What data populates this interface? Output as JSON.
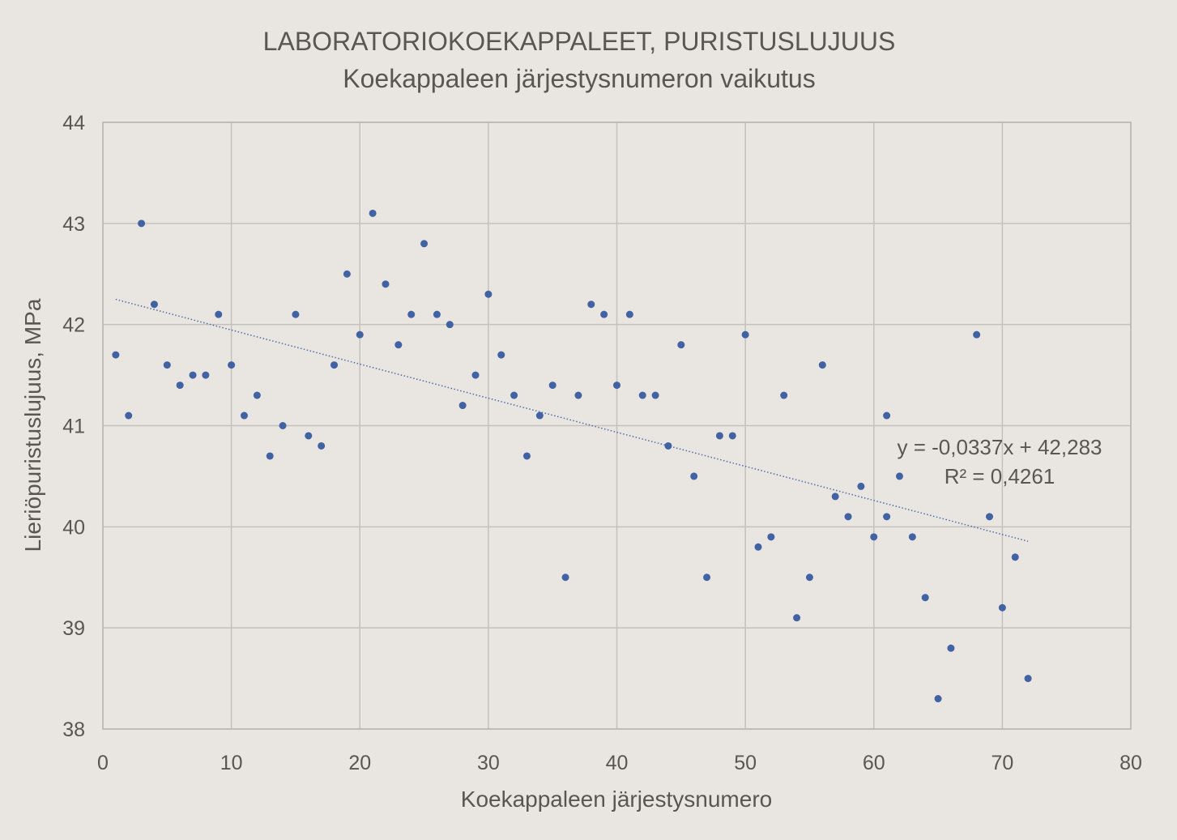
{
  "chart_data": {
    "type": "scatter",
    "title": "LABORATORIOKOEKAPPALEET, PURISTUSLUJUUS",
    "subtitle": "Koekappaleen järjestysnumeron vaikutus",
    "xlabel": "Koekappaleen järjestysnumero",
    "ylabel": "Lieriöpuristuslujuus, MPa",
    "xlim": [
      0,
      80
    ],
    "ylim": [
      38,
      44
    ],
    "xticks": [
      "0",
      "10",
      "20",
      "30",
      "40",
      "50",
      "60",
      "70",
      "80"
    ],
    "yticks": [
      "38",
      "39",
      "40",
      "41",
      "42",
      "43",
      "44"
    ],
    "grid": true,
    "marker_color": "#4263a3",
    "trend_color": "#4a6ba8",
    "points": [
      [
        1,
        41.7
      ],
      [
        2,
        41.1
      ],
      [
        3,
        43.0
      ],
      [
        4,
        42.2
      ],
      [
        5,
        41.6
      ],
      [
        6,
        41.4
      ],
      [
        7,
        41.5
      ],
      [
        8,
        41.5
      ],
      [
        9,
        42.1
      ],
      [
        10,
        41.6
      ],
      [
        11,
        41.1
      ],
      [
        12,
        41.3
      ],
      [
        13,
        40.7
      ],
      [
        14,
        41.0
      ],
      [
        15,
        42.1
      ],
      [
        16,
        40.9
      ],
      [
        17,
        40.8
      ],
      [
        18,
        41.6
      ],
      [
        19,
        42.5
      ],
      [
        20,
        41.9
      ],
      [
        21,
        43.1
      ],
      [
        22,
        42.4
      ],
      [
        23,
        41.8
      ],
      [
        24,
        42.1
      ],
      [
        25,
        42.8
      ],
      [
        26,
        42.1
      ],
      [
        27,
        42.0
      ],
      [
        28,
        41.2
      ],
      [
        29,
        41.5
      ],
      [
        30,
        42.3
      ],
      [
        31,
        41.7
      ],
      [
        32,
        41.3
      ],
      [
        33,
        40.7
      ],
      [
        34,
        41.1
      ],
      [
        35,
        41.4
      ],
      [
        36,
        39.5
      ],
      [
        37,
        41.3
      ],
      [
        38,
        42.2
      ],
      [
        39,
        42.1
      ],
      [
        40,
        41.4
      ],
      [
        41,
        42.1
      ],
      [
        42,
        41.3
      ],
      [
        43,
        41.3
      ],
      [
        44,
        40.8
      ],
      [
        45,
        41.8
      ],
      [
        46,
        40.5
      ],
      [
        47,
        39.5
      ],
      [
        48,
        40.9
      ],
      [
        49,
        40.9
      ],
      [
        50,
        41.9
      ],
      [
        51,
        39.8
      ],
      [
        52,
        39.9
      ],
      [
        53,
        41.3
      ],
      [
        54,
        39.1
      ],
      [
        55,
        39.5
      ],
      [
        56,
        41.6
      ],
      [
        57,
        40.3
      ],
      [
        58,
        40.1
      ],
      [
        59,
        40.4
      ],
      [
        60,
        39.9
      ],
      [
        61,
        41.1
      ],
      [
        61,
        40.1
      ],
      [
        62,
        40.5
      ],
      [
        63,
        39.9
      ],
      [
        64,
        39.3
      ],
      [
        65,
        38.3
      ],
      [
        66,
        38.8
      ],
      [
        68,
        41.9
      ],
      [
        69,
        40.1
      ],
      [
        70,
        39.2
      ],
      [
        71,
        39.7
      ],
      [
        72,
        38.5
      ]
    ],
    "trendline": {
      "type": "linear",
      "slope": -0.0337,
      "intercept": 42.283,
      "x_range": [
        1,
        72
      ],
      "equation": "y = -0,0337x + 42,283",
      "r_squared": "R² = 0,4261"
    }
  }
}
